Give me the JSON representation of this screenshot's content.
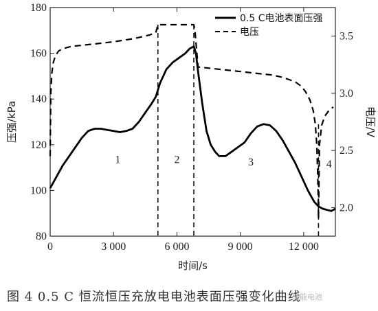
{
  "caption": "图 4 0.5 C 恒流恒压充放电电池表面压强变化曲线",
  "watermark": "储能电池",
  "chart_data": {
    "type": "line",
    "xlabel": "时间/s",
    "ylabel_left": "压强/kPa",
    "ylabel_right": "电压/V",
    "xlim": [
      0,
      13500
    ],
    "ylim_left": [
      80,
      180
    ],
    "ylim_right": [
      1.75,
      3.75
    ],
    "x_ticks": [
      0,
      3000,
      6000,
      9000,
      12000
    ],
    "x_tick_labels": [
      "0",
      "3 000",
      "6 000",
      "9 000",
      "12 000"
    ],
    "y_left_ticks": [
      80,
      100,
      120,
      140,
      160,
      180
    ],
    "y_right_ticks": [
      2.0,
      2.5,
      3.0,
      3.5
    ],
    "y_right_tick_labels": [
      "2.0",
      "2.5",
      "3.0",
      "3.5"
    ],
    "legend_position": "top-right",
    "phase_boundaries": [
      5100,
      6800,
      12700
    ],
    "phase_labels": [
      {
        "text": "1",
        "x": 3200,
        "y": 112
      },
      {
        "text": "2",
        "x": 6000,
        "y": 112
      },
      {
        "text": "3",
        "x": 9500,
        "y": 111
      },
      {
        "text": "4",
        "x": 13200,
        "y": 110
      }
    ],
    "series": [
      {
        "name": "0.5 C电池表面压强",
        "axis": "left",
        "style": "solid",
        "color": "#000000",
        "x": [
          0,
          300,
          600,
          900,
          1200,
          1500,
          1800,
          2100,
          2400,
          2700,
          3000,
          3300,
          3600,
          3900,
          4200,
          4500,
          4800,
          5000,
          5200,
          5500,
          5800,
          6100,
          6400,
          6600,
          6800,
          6900,
          7000,
          7200,
          7400,
          7600,
          7800,
          8000,
          8300,
          8600,
          8900,
          9200,
          9500,
          9800,
          10100,
          10400,
          10700,
          11000,
          11300,
          11600,
          11900,
          12200,
          12500,
          12700,
          12900,
          13100,
          13300,
          13500
        ],
        "values": [
          101,
          106,
          111,
          115,
          119,
          123,
          126,
          127,
          127,
          126.5,
          126,
          125.5,
          126,
          127,
          130,
          134,
          138,
          141,
          147,
          153,
          156,
          158,
          160,
          162,
          163,
          160,
          152,
          138,
          126,
          120,
          117,
          115,
          115,
          117,
          119,
          121,
          125,
          128,
          129,
          128.5,
          126,
          122,
          117,
          112,
          106,
          100,
          95,
          93,
          92,
          91.5,
          91,
          92
        ]
      },
      {
        "name": "电压",
        "axis": "right",
        "style": "dashed",
        "color": "#000000",
        "x": [
          0,
          30,
          80,
          150,
          250,
          400,
          600,
          1000,
          2000,
          3000,
          4000,
          4700,
          5000,
          5100,
          6000,
          6700,
          6800,
          6850,
          7000,
          8000,
          9000,
          10000,
          10500,
          11000,
          11300,
          11600,
          11900,
          12100,
          12300,
          12450,
          12550,
          12620,
          12660,
          12690,
          12700,
          12750,
          12850,
          13000,
          13200,
          13400
        ],
        "values": [
          2.45,
          3.0,
          3.18,
          3.27,
          3.33,
          3.37,
          3.39,
          3.41,
          3.43,
          3.45,
          3.48,
          3.51,
          3.53,
          3.6,
          3.6,
          3.6,
          3.6,
          3.55,
          3.23,
          3.21,
          3.19,
          3.17,
          3.16,
          3.14,
          3.12,
          3.1,
          3.06,
          3.01,
          2.94,
          2.85,
          2.73,
          2.55,
          2.3,
          2.05,
          1.9,
          2.55,
          2.72,
          2.8,
          2.85,
          2.88
        ]
      }
    ]
  }
}
